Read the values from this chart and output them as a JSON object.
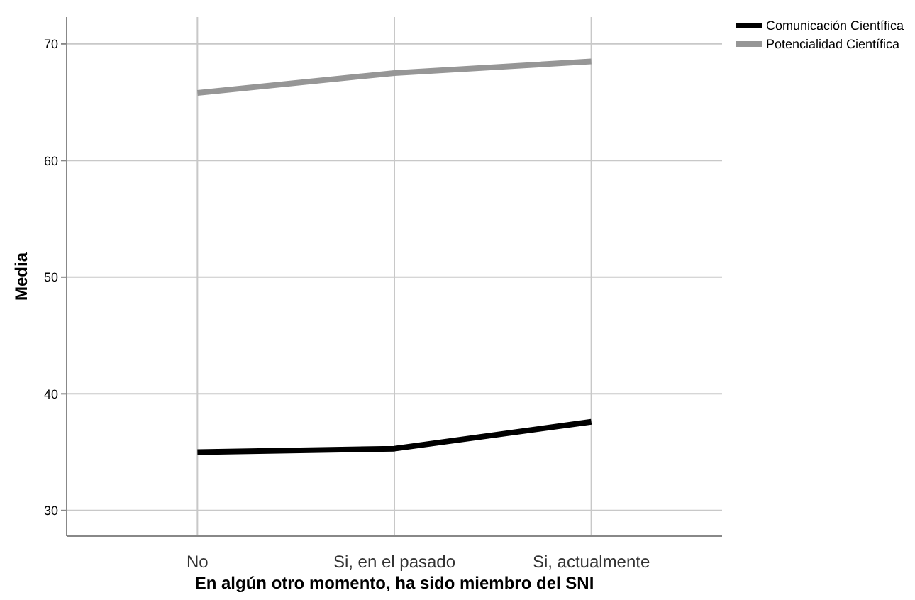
{
  "chart_data": {
    "type": "line",
    "xlabel": "En algún otro momento, ha sido miembro del SNI",
    "ylabel": "Media",
    "categories": [
      "No",
      "Si, en el pasado",
      "Si, actualmente"
    ],
    "series": [
      {
        "name": "Comunicación Científica",
        "color": "#000000",
        "values": [
          35.0,
          35.3,
          37.6
        ]
      },
      {
        "name": "Potencialidad Científica",
        "color": "#969696",
        "values": [
          65.8,
          67.5,
          68.5
        ]
      }
    ],
    "ylim": [
      27.8,
      72.3
    ],
    "yticks": [
      30,
      40,
      50,
      60,
      70
    ],
    "grid": true,
    "legend": "top right",
    "marker": "none",
    "line_style": "solid"
  }
}
